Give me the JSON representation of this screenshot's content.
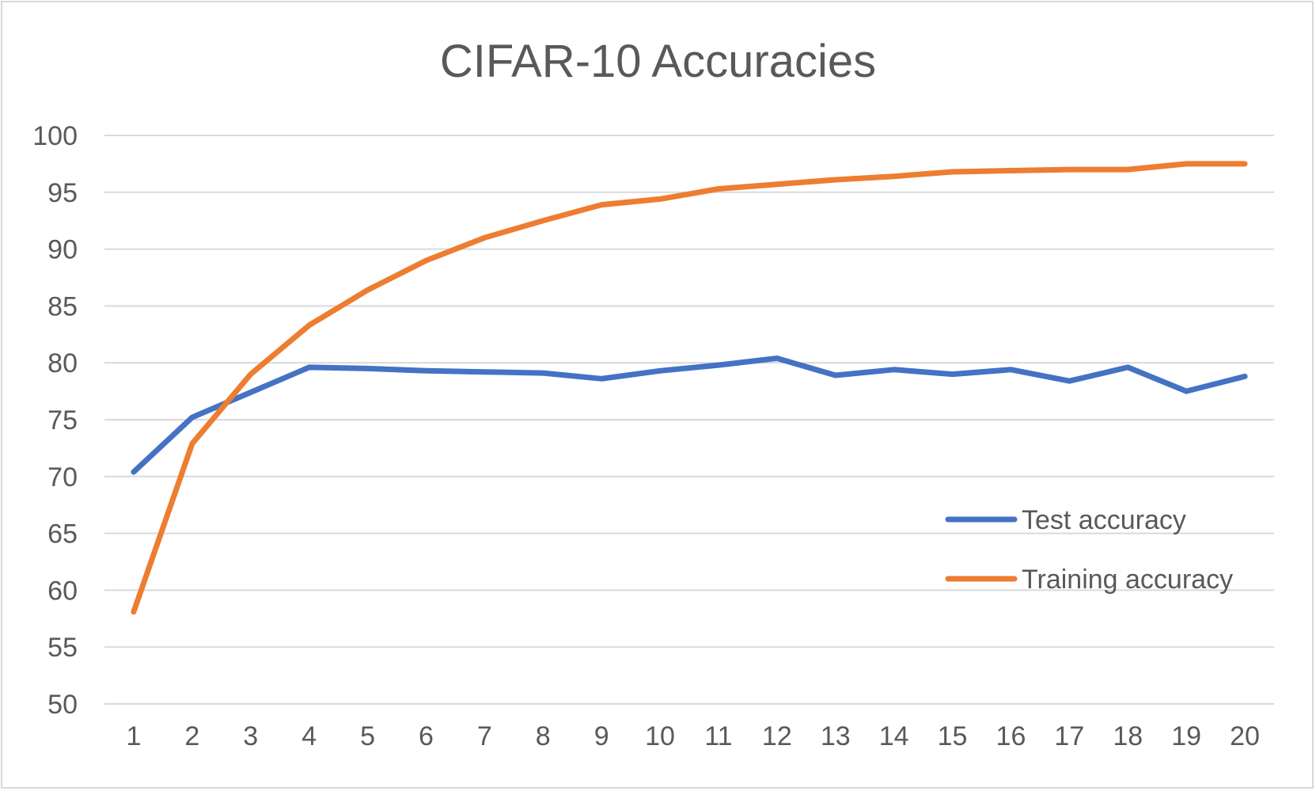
{
  "chart_data": {
    "type": "line",
    "title": "CIFAR-10 Accuracies",
    "xlabel": "",
    "ylabel": "",
    "x": [
      1,
      2,
      3,
      4,
      5,
      6,
      7,
      8,
      9,
      10,
      11,
      12,
      13,
      14,
      15,
      16,
      17,
      18,
      19,
      20
    ],
    "ylim": [
      50,
      100
    ],
    "yticks": [
      50,
      55,
      60,
      65,
      70,
      75,
      80,
      85,
      90,
      95,
      100
    ],
    "grid": true,
    "legend_position": "right",
    "series": [
      {
        "name": "Test accuracy",
        "color": "#4472c4",
        "values": [
          70.4,
          75.2,
          77.4,
          79.6,
          79.5,
          79.3,
          79.2,
          79.1,
          78.6,
          79.3,
          79.8,
          80.4,
          78.9,
          79.4,
          79.0,
          79.4,
          78.4,
          79.6,
          77.5,
          78.8
        ]
      },
      {
        "name": "Training accuracy",
        "color": "#ed7d31",
        "values": [
          58.1,
          72.9,
          79.0,
          83.3,
          86.4,
          89.0,
          91.0,
          92.5,
          93.9,
          94.4,
          95.3,
          95.7,
          96.1,
          96.4,
          96.8,
          96.9,
          97.0,
          97.0,
          97.5,
          97.5
        ]
      }
    ]
  }
}
